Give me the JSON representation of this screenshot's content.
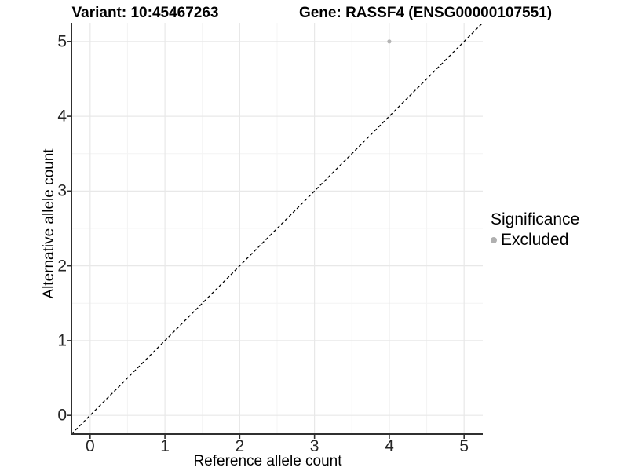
{
  "chart_data": {
    "type": "scatter",
    "titles": {
      "left": "Variant: 10:45467263",
      "right": "Gene: RASSF4 (ENSG00000107551)"
    },
    "xlabel": "Reference allele count",
    "ylabel": "Alternative allele count",
    "xlim": [
      -0.25,
      5.25
    ],
    "ylim": [
      -0.25,
      5.25
    ],
    "x_ticks": [
      0,
      1,
      2,
      3,
      4,
      5
    ],
    "y_ticks": [
      0,
      1,
      2,
      3,
      4,
      5
    ],
    "x_minor_ticks": [
      0.5,
      1.5,
      2.5,
      3.5,
      4.5
    ],
    "y_minor_ticks": [
      0.5,
      1.5,
      2.5,
      3.5,
      4.5
    ],
    "grid": true,
    "reference_line": {
      "kind": "identity-diagonal",
      "style": "dashed",
      "color": "#000000",
      "from": [
        -0.25,
        -0.25
      ],
      "to": [
        5.25,
        5.25
      ]
    },
    "series": [
      {
        "name": "Excluded",
        "color": "#b4b4b4",
        "point_radius": 2.6,
        "points": [
          {
            "x": 4,
            "y": 5
          }
        ]
      }
    ],
    "legend": {
      "title": "Significance",
      "position": "right",
      "entries": [
        {
          "label": "Excluded",
          "color": "#b0b0b0"
        }
      ]
    },
    "style_colors": {
      "axis_line": "#303030",
      "major_grid": "#e8e8e8",
      "minor_grid": "#f4f4f4",
      "tick_mark": "#303030",
      "tick_text": "#262626"
    }
  }
}
